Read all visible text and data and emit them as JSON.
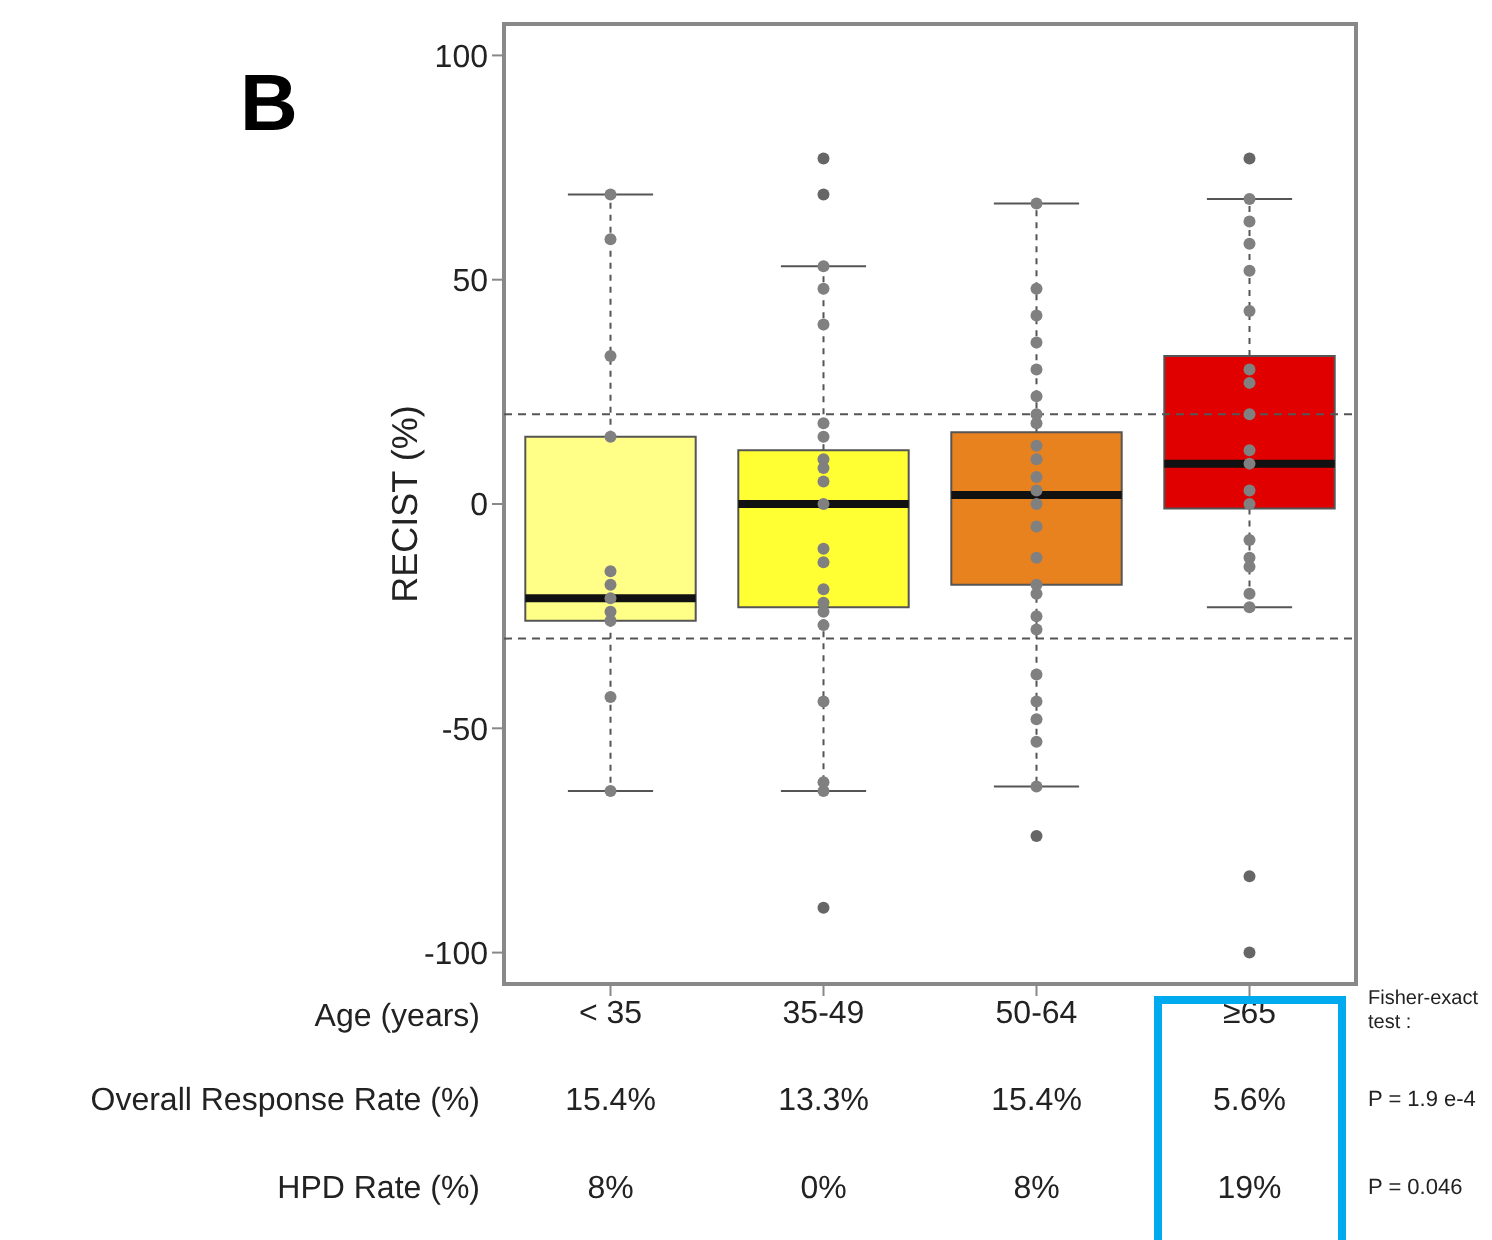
{
  "chart_data": {
    "type": "box",
    "title": "B",
    "xlabel": "Age (years)",
    "ylabel": "RECIST (%)",
    "categories": [
      "< 35",
      "35-49",
      "50-64",
      "≥65"
    ],
    "colors": [
      "#ffff88",
      "#ffff33",
      "#e8821e",
      "#e00000"
    ],
    "boxes": [
      {
        "low": -64,
        "q1": -26,
        "median": -21,
        "q3": 15,
        "high": 69
      },
      {
        "low": -64,
        "q1": -23,
        "median": 0,
        "q3": 12,
        "high": 53,
        "outliers": [
          77,
          69,
          -90
        ]
      },
      {
        "low": -63,
        "q1": -18,
        "median": 2,
        "q3": 16,
        "high": 67,
        "outliers": [
          -74
        ]
      },
      {
        "low": -23,
        "q1": -1,
        "median": 9,
        "q3": 33,
        "high": 68,
        "outliers": [
          77,
          -83,
          -100
        ]
      }
    ],
    "series": [
      {
        "type": "scatter",
        "color": "#808080",
        "x": [
          "< 35",
          "< 35",
          "< 35",
          "< 35",
          "< 35",
          "< 35",
          "< 35",
          "< 35",
          "< 35",
          "< 35",
          "< 35",
          "35-49",
          "35-49",
          "35-49",
          "35-49",
          "35-49",
          "35-49",
          "35-49",
          "35-49",
          "35-49",
          "35-49",
          "35-49",
          "35-49",
          "35-49",
          "35-49",
          "35-49",
          "35-49",
          "35-49",
          "35-49",
          "50-64",
          "50-64",
          "50-64",
          "50-64",
          "50-64",
          "50-64",
          "50-64",
          "50-64",
          "50-64",
          "50-64",
          "50-64",
          "50-64",
          "50-64",
          "50-64",
          "50-64",
          "50-64",
          "50-64",
          "50-64",
          "50-64",
          "50-64",
          "50-64",
          "50-64",
          "50-64",
          "50-64",
          "≥65",
          "≥65",
          "≥65",
          "≥65",
          "≥65",
          "≥65",
          "≥65",
          "≥65",
          "≥65",
          "≥65",
          "≥65",
          "≥65",
          "≥65",
          "≥65",
          "≥65",
          "≥65",
          "≥65"
        ],
        "values": [
          69,
          59,
          33,
          15,
          -15,
          -18,
          -21,
          -24,
          -26,
          -43,
          -64,
          53,
          48,
          40,
          18,
          15,
          10,
          8,
          5,
          0,
          -10,
          -13,
          -19,
          -22,
          -24,
          -27,
          -44,
          -62,
          -64,
          67,
          48,
          42,
          36,
          30,
          24,
          20,
          18,
          13,
          10,
          6,
          3,
          0,
          -5,
          -12,
          -18,
          -20,
          -25,
          -28,
          -38,
          -44,
          -48,
          -53,
          -63,
          68,
          63,
          58,
          52,
          43,
          30,
          27,
          20,
          12,
          9,
          3,
          0,
          -8,
          -12,
          -14,
          -20,
          -23
        ]
      }
    ],
    "ylim": [
      -107,
      107
    ],
    "yticks": [
      -100,
      -50,
      0,
      50,
      100
    ],
    "ref_lines": [
      {
        "axis": "y",
        "value": 20,
        "line_style": "dashed"
      },
      {
        "axis": "y",
        "value": -30,
        "line_style": "dashed"
      }
    ],
    "annotations": [
      "Fisher-exact test :",
      "Overall Response Rate (%)",
      "15.4%",
      "13.3%",
      "15.4%",
      "5.6%",
      "P = 1.9 e-4",
      "HPD Rate (%)",
      "8%",
      "0%",
      "8%",
      "19%",
      "P = 0.046"
    ]
  }
}
